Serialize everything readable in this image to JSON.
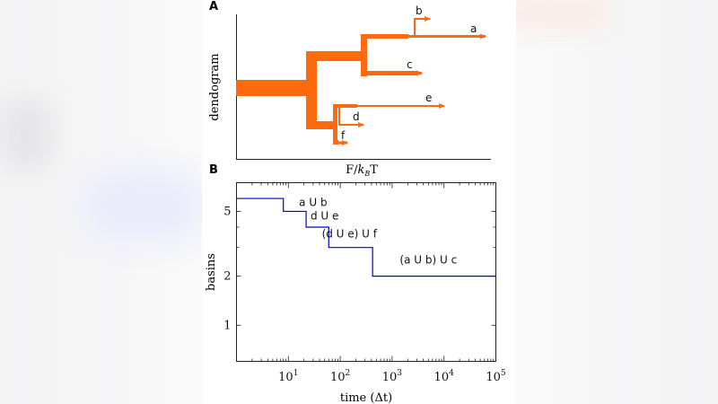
{
  "chart_data": [
    {
      "type": "dendrogram",
      "panel_label": "A",
      "ylabel": "dendogram",
      "xlabel_parts": {
        "F": "F/",
        "k": "k",
        "sub": "B",
        "T": "T"
      },
      "color": "#ff6a10",
      "leaves": [
        "a",
        "b",
        "c",
        "d",
        "e",
        "f"
      ]
    },
    {
      "type": "line",
      "panel_label": "B",
      "ylabel": "basins",
      "xlabel": "time (Δt)",
      "x_scale": "log",
      "xlim": [
        1,
        100000
      ],
      "ylim": [
        0.6,
        7.5
      ],
      "color": "#0000cc",
      "x_ticks": [
        {
          "value": 10,
          "base": "10",
          "exp": "1"
        },
        {
          "value": 100,
          "base": "10",
          "exp": "2"
        },
        {
          "value": 1000,
          "base": "10",
          "exp": "3"
        },
        {
          "value": 10000,
          "base": "10",
          "exp": "4"
        },
        {
          "value": 100000,
          "base": "10",
          "exp": "5"
        }
      ],
      "y_ticks": [
        {
          "value": 1,
          "label": "1"
        },
        {
          "value": 2,
          "label": "2"
        },
        {
          "value": 5,
          "label": "5"
        }
      ],
      "steps": [
        {
          "x_start": 1,
          "x_end": 8,
          "y": 6
        },
        {
          "x_start": 8,
          "x_end": 22,
          "y": 5
        },
        {
          "x_start": 22,
          "x_end": 60,
          "y": 4
        },
        {
          "x_start": 60,
          "x_end": 420,
          "y": 3
        },
        {
          "x_start": 420,
          "x_end": 100000,
          "y": 2
        }
      ],
      "annotations": [
        {
          "text": "a U b",
          "x": 30,
          "y": 5.4
        },
        {
          "text": "d U e",
          "x": 50,
          "y": 4.45
        },
        {
          "text": "(d U e) U f",
          "x": 150,
          "y": 3.45
        },
        {
          "text": "(a U b) U c",
          "x": 5000,
          "y": 2.4
        }
      ]
    }
  ]
}
